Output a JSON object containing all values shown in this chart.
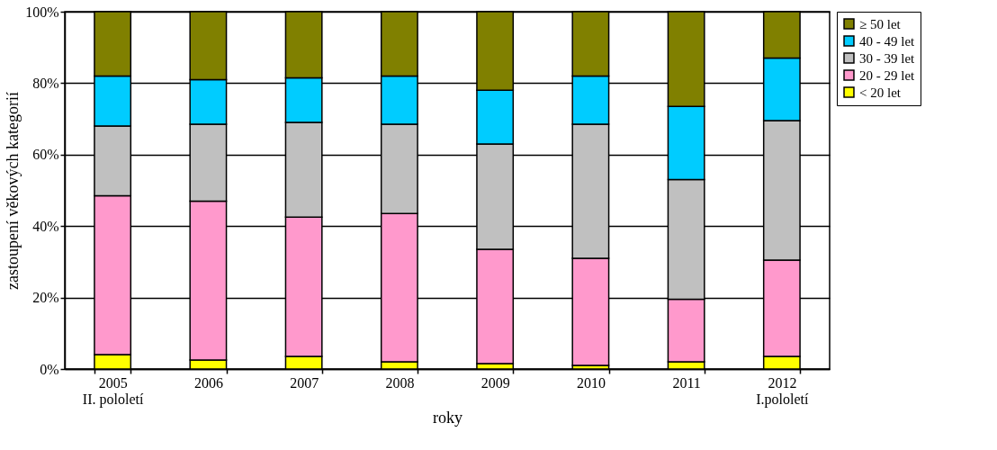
{
  "chart_data": {
    "type": "bar",
    "stacked": true,
    "categories": [
      "2005\nII. pololetí",
      "2006",
      "2007",
      "2008",
      "2009",
      "2010",
      "2011",
      "2012\nI.pololetí"
    ],
    "xlabel": "roky",
    "ylabel": "zastoupení věkových kategorií",
    "series": [
      {
        "name": "< 20 let",
        "color": "#ffff00",
        "values": [
          4,
          2.5,
          3.5,
          2,
          1.5,
          1,
          2,
          3.5
        ]
      },
      {
        "name": "20 - 29 let",
        "color": "#ff99cc",
        "values": [
          44.5,
          44.5,
          39,
          41.5,
          32,
          30,
          17.5,
          27
        ]
      },
      {
        "name": "30 - 39 let",
        "color": "#c0c0c0",
        "values": [
          19.5,
          21.5,
          26.5,
          25,
          29.5,
          37.5,
          33.5,
          39
        ]
      },
      {
        "name": "40 - 49 let",
        "color": "#00ccff",
        "values": [
          14,
          12.5,
          12.5,
          13.5,
          15,
          13.5,
          20.5,
          17.5
        ]
      },
      {
        "name": "≥ 50 let",
        "color": "#808000",
        "values": [
          18,
          19,
          18.5,
          18,
          22,
          18,
          26.5,
          13
        ]
      }
    ],
    "ylim": [
      0,
      100
    ],
    "yticks": [
      {
        "value": 0,
        "label": "0%"
      },
      {
        "value": 20,
        "label": "20%"
      },
      {
        "value": 40,
        "label": "40%"
      },
      {
        "value": 60,
        "label": "60%"
      },
      {
        "value": 80,
        "label": "80%"
      },
      {
        "value": 100,
        "label": "100%"
      }
    ],
    "grid": "y",
    "legend": "right"
  }
}
